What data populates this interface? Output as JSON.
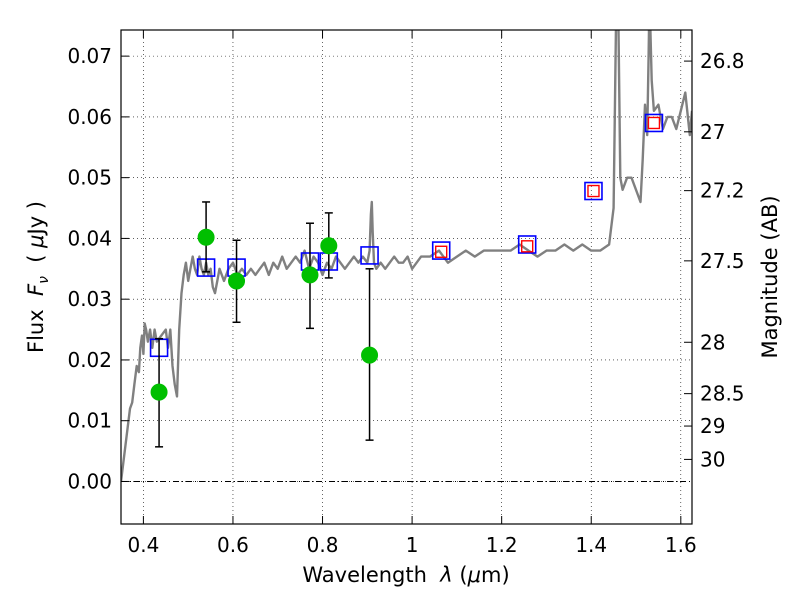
{
  "chart_data": {
    "type": "scatter",
    "xlabel_prefix": "Wavelength  ",
    "xlabel_symbol": "λ",
    "xlabel_suffix": " (",
    "xlabel_mu": "μ",
    "xlabel_unit": "m)",
    "ylabel_prefix": "Flux  ",
    "ylabel_symbol": "F",
    "ylabel_sub": "ν",
    "ylabel_unit_open": "  ( ",
    "ylabel_mu": "μ",
    "ylabel_unit_close": "Jy )",
    "y2label": "Magnitude (AB)",
    "xlim": [
      0.35,
      1.625
    ],
    "ylim": [
      -0.007,
      0.0743
    ],
    "x_ticks": [
      0.4,
      0.6,
      0.8,
      1.0,
      1.2,
      1.4,
      1.6
    ],
    "x_tick_labels": [
      "0.4",
      "0.6",
      "0.8",
      "1",
      "1.2",
      "1.4",
      "1.6"
    ],
    "y_ticks": [
      0.0,
      0.01,
      0.02,
      0.03,
      0.04,
      0.05,
      0.06,
      0.07
    ],
    "y_tick_labels": [
      "0.00",
      "0.01",
      "0.02",
      "0.03",
      "0.04",
      "0.05",
      "0.06",
      "0.07"
    ],
    "y2_ticks": [
      26.8,
      27.0,
      27.2,
      27.5,
      28.0,
      28.5,
      29.0,
      30.0
    ],
    "y2_tick_labels": [
      "26.8",
      "27",
      "27.2",
      "27.5",
      "28",
      "28.5",
      "29",
      "30"
    ],
    "grid": true,
    "colors": {
      "sed_line": "#808080",
      "model_blue": "#0000ff",
      "model_red": "#ff0000",
      "observed": "#00bf00",
      "errorbar": "#000000"
    },
    "series": [
      {
        "name": "sed_model_spectrum",
        "type": "line",
        "x": [
          0.35,
          0.36,
          0.37,
          0.375,
          0.38,
          0.385,
          0.39,
          0.393,
          0.397,
          0.4,
          0.403,
          0.406,
          0.41,
          0.415,
          0.42,
          0.425,
          0.43,
          0.44,
          0.45,
          0.455,
          0.46,
          0.465,
          0.47,
          0.475,
          0.48,
          0.485,
          0.49,
          0.495,
          0.5,
          0.505,
          0.51,
          0.515,
          0.52,
          0.525,
          0.53,
          0.535,
          0.54,
          0.545,
          0.55,
          0.555,
          0.56,
          0.565,
          0.57,
          0.575,
          0.58,
          0.59,
          0.6,
          0.61,
          0.62,
          0.63,
          0.64,
          0.65,
          0.66,
          0.67,
          0.68,
          0.69,
          0.7,
          0.71,
          0.72,
          0.73,
          0.74,
          0.75,
          0.76,
          0.77,
          0.78,
          0.79,
          0.8,
          0.81,
          0.82,
          0.83,
          0.84,
          0.85,
          0.86,
          0.87,
          0.88,
          0.89,
          0.9,
          0.905,
          0.908,
          0.91,
          0.912,
          0.915,
          0.92,
          0.93,
          0.94,
          0.95,
          0.96,
          0.97,
          0.98,
          0.99,
          1.0,
          1.02,
          1.04,
          1.06,
          1.07,
          1.08,
          1.1,
          1.12,
          1.14,
          1.16,
          1.18,
          1.2,
          1.22,
          1.24,
          1.26,
          1.28,
          1.3,
          1.32,
          1.34,
          1.36,
          1.38,
          1.4,
          1.42,
          1.44,
          1.45,
          1.455,
          1.46,
          1.465,
          1.47,
          1.48,
          1.49,
          1.5,
          1.51,
          1.515,
          1.52,
          1.525,
          1.528,
          1.53,
          1.535,
          1.54,
          1.55,
          1.56,
          1.57,
          1.58,
          1.59,
          1.6,
          1.61,
          1.62,
          1.625
        ],
        "y": [
          0.0,
          0.006,
          0.012,
          0.013,
          0.016,
          0.019,
          0.018,
          0.022,
          0.024,
          0.021,
          0.026,
          0.025,
          0.023,
          0.025,
          0.022,
          0.025,
          0.023,
          0.024,
          0.025,
          0.022,
          0.025,
          0.019,
          0.016,
          0.014,
          0.025,
          0.031,
          0.034,
          0.036,
          0.033,
          0.035,
          0.037,
          0.035,
          0.034,
          0.037,
          0.035,
          0.034,
          0.036,
          0.034,
          0.035,
          0.032,
          0.031,
          0.033,
          0.035,
          0.034,
          0.033,
          0.035,
          0.036,
          0.034,
          0.035,
          0.034,
          0.035,
          0.034,
          0.035,
          0.036,
          0.034,
          0.036,
          0.035,
          0.037,
          0.035,
          0.036,
          0.037,
          0.036,
          0.038,
          0.035,
          0.037,
          0.036,
          0.034,
          0.036,
          0.035,
          0.037,
          0.036,
          0.035,
          0.036,
          0.037,
          0.036,
          0.037,
          0.036,
          0.038,
          0.044,
          0.046,
          0.041,
          0.036,
          0.035,
          0.036,
          0.035,
          0.036,
          0.037,
          0.036,
          0.036,
          0.037,
          0.035,
          0.037,
          0.037,
          0.038,
          0.037,
          0.036,
          0.037,
          0.038,
          0.037,
          0.038,
          0.038,
          0.038,
          0.038,
          0.039,
          0.038,
          0.037,
          0.038,
          0.038,
          0.039,
          0.038,
          0.039,
          0.038,
          0.038,
          0.039,
          0.045,
          0.074,
          0.08,
          0.05,
          0.048,
          0.05,
          0.05,
          0.048,
          0.046,
          0.053,
          0.062,
          0.057,
          0.07,
          0.08,
          0.066,
          0.061,
          0.062,
          0.058,
          0.06,
          0.06,
          0.058,
          0.061,
          0.064,
          0.057,
          0.061
        ]
      },
      {
        "name": "model_photometry_blue",
        "type": "marker",
        "marker": "open-square",
        "x": [
          0.435,
          0.54,
          0.608,
          0.772,
          0.814,
          0.905,
          1.065,
          1.257,
          1.405,
          1.54
        ],
        "y": [
          0.022,
          0.0352,
          0.0352,
          0.0362,
          0.0362,
          0.0372,
          0.038,
          0.039,
          0.0478,
          0.059
        ]
      },
      {
        "name": "model_photometry_red",
        "type": "marker",
        "marker": "open-square",
        "x": [
          1.065,
          1.257,
          1.405,
          1.54
        ],
        "y": [
          0.0378,
          0.0387,
          0.0478,
          0.059
        ]
      },
      {
        "name": "observed_photometry",
        "type": "marker",
        "marker": "filled-circle",
        "x": [
          0.435,
          0.54,
          0.608,
          0.772,
          0.814,
          0.905
        ],
        "y": [
          0.0147,
          0.0402,
          0.033,
          0.034,
          0.0388,
          0.0208
        ],
        "yerr_low": [
          0.0057,
          0.0345,
          0.0262,
          0.0252,
          0.0335,
          0.0068
        ],
        "yerr_high": [
          0.0235,
          0.046,
          0.0397,
          0.0425,
          0.0442,
          0.035
        ]
      }
    ]
  }
}
